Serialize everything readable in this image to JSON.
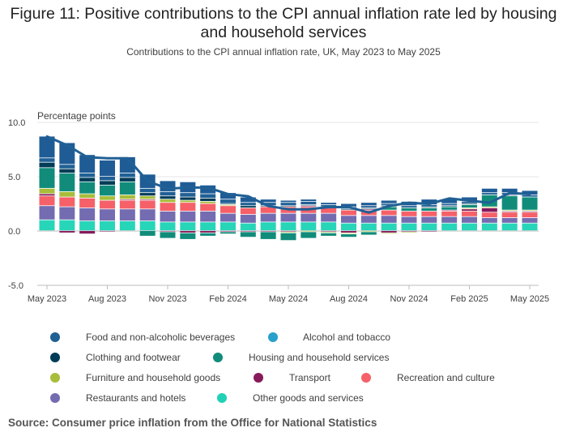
{
  "title": "Figure 11: Positive contributions to the CPI annual inflation rate led by housing and household services",
  "subtitle": "Contributions to the CPI annual inflation rate, UK, May 2023 to May 2025",
  "source": "Source: Consumer price inflation from the Office for National Statistics",
  "chart_data": {
    "type": "bar",
    "stacked": true,
    "ylabel": "Percentage points",
    "ylim": [
      -5,
      10
    ],
    "yticks": [
      "10.0",
      "5.0",
      "0.0",
      "-5.0"
    ],
    "categories": [
      "May 2023",
      "Jun 2023",
      "Jul 2023",
      "Aug 2023",
      "Sep 2023",
      "Oct 2023",
      "Nov 2023",
      "Dec 2023",
      "Jan 2024",
      "Feb 2024",
      "Mar 2024",
      "Apr 2024",
      "May 2024",
      "Jun 2024",
      "Jul 2024",
      "Aug 2024",
      "Sep 2024",
      "Oct 2024",
      "Nov 2024",
      "Dec 2024",
      "Jan 2025",
      "Feb 2025",
      "Mar 2025",
      "Apr 2025",
      "May 2025"
    ],
    "xtick_labels": [
      "May 2023",
      "Aug 2023",
      "Nov 2023",
      "Feb 2024",
      "May 2024",
      "Aug 2024",
      "Nov 2024",
      "Feb 2025",
      "May 2025"
    ],
    "xtick_indices": [
      0,
      3,
      6,
      9,
      12,
      15,
      18,
      21,
      24
    ],
    "grid": false,
    "legend_position": "bottom",
    "series": [
      {
        "name": "Other goods and services",
        "color": "#27D5B8",
        "values": [
          1.0,
          1.0,
          0.9,
          0.9,
          0.9,
          0.9,
          0.8,
          0.8,
          0.8,
          0.8,
          0.7,
          0.8,
          0.8,
          0.8,
          0.8,
          0.7,
          0.7,
          0.7,
          0.7,
          0.7,
          0.7,
          0.7,
          0.7,
          0.7,
          0.7
        ]
      },
      {
        "name": "Restaurants and hotels",
        "color": "#746CB1",
        "values": [
          1.3,
          1.2,
          1.2,
          1.1,
          1.1,
          1.1,
          1.0,
          1.0,
          1.0,
          0.8,
          0.8,
          0.8,
          0.8,
          0.8,
          0.8,
          0.7,
          0.7,
          0.7,
          0.6,
          0.6,
          0.6,
          0.6,
          0.5,
          0.5,
          0.5
        ]
      },
      {
        "name": "Recreation and culture",
        "color": "#F66068",
        "values": [
          0.9,
          0.9,
          0.9,
          0.8,
          0.8,
          0.8,
          0.8,
          0.8,
          0.7,
          0.7,
          0.6,
          0.6,
          0.6,
          0.6,
          0.5,
          0.5,
          0.5,
          0.5,
          0.5,
          0.5,
          0.5,
          0.5,
          0.5,
          0.5,
          0.5
        ]
      },
      {
        "name": "Transport",
        "color": "#871A5B",
        "values": [
          0.2,
          -0.2,
          -0.3,
          -0.1,
          0.1,
          0.1,
          -0.1,
          -0.2,
          -0.2,
          -0.1,
          -0.1,
          -0.1,
          -0.1,
          0.1,
          -0.1,
          -0.2,
          0.1,
          -0.2,
          -0.1,
          -0.1,
          0.1,
          0.2,
          0.4,
          0.1,
          0.1
        ]
      },
      {
        "name": "Furniture and household goods",
        "color": "#A8BD3A",
        "values": [
          0.5,
          0.5,
          0.4,
          0.4,
          0.4,
          0.3,
          0.3,
          0.2,
          0.2,
          0.1,
          0.0,
          0.0,
          -0.1,
          -0.1,
          -0.1,
          -0.1,
          -0.1,
          -0.1,
          -0.1,
          0.0,
          0.0,
          0.1,
          0.1,
          0.1,
          0.1
        ]
      },
      {
        "name": "Housing and household services",
        "color": "#118C7B",
        "values": [
          1.9,
          1.7,
          1.1,
          1.0,
          1.2,
          -0.5,
          -0.6,
          -0.6,
          -0.3,
          -0.2,
          -0.5,
          -0.7,
          -0.7,
          -0.6,
          -0.3,
          -0.3,
          -0.3,
          0.3,
          0.3,
          0.3,
          0.3,
          0.3,
          1.1,
          1.3,
          1.2
        ]
      },
      {
        "name": "Clothing and footwear",
        "color": "#003C57",
        "values": [
          0.5,
          0.4,
          0.4,
          0.4,
          0.4,
          0.3,
          0.3,
          0.3,
          0.3,
          0.1,
          0.2,
          0.1,
          0.1,
          0.1,
          0.1,
          0.1,
          0.1,
          0.1,
          0.0,
          0.1,
          0.1,
          0.1,
          0.0,
          0.1,
          0.0
        ]
      },
      {
        "name": "Alcohol and tobacco",
        "color": "#206095",
        "values": [
          0.4,
          0.4,
          0.4,
          0.4,
          0.4,
          0.4,
          0.4,
          0.4,
          0.4,
          0.4,
          0.3,
          0.3,
          0.3,
          0.3,
          0.2,
          0.2,
          0.2,
          0.2,
          0.2,
          0.2,
          0.2,
          0.2,
          0.2,
          0.2,
          0.2
        ]
      },
      {
        "name": "Food and non-alcoholic beverages",
        "color": "#1F5C96",
        "values": [
          2.0,
          2.0,
          1.7,
          1.5,
          1.5,
          1.3,
          1.0,
          1.0,
          0.8,
          0.6,
          0.5,
          0.3,
          0.2,
          0.2,
          0.2,
          0.3,
          0.3,
          0.3,
          0.4,
          0.5,
          0.4,
          0.4,
          0.4,
          0.4,
          0.4
        ]
      }
    ],
    "line": {
      "name": "CPI annual rate",
      "color": "#206095",
      "values": [
        8.7,
        7.9,
        6.8,
        6.7,
        6.7,
        4.6,
        3.9,
        4.0,
        4.0,
        3.4,
        3.2,
        2.3,
        2.0,
        2.0,
        2.2,
        2.2,
        1.7,
        2.3,
        2.6,
        2.5,
        3.0,
        2.8,
        2.6,
        3.5,
        3.4
      ]
    }
  },
  "legend": [
    {
      "label": "Food and non-alcoholic beverages",
      "color": "#206095"
    },
    {
      "label": "Alcohol and tobacco",
      "color": "#27A0CC"
    },
    {
      "label": "Clothing and footwear",
      "color": "#003C57"
    },
    {
      "label": "Housing and household services",
      "color": "#118C7B"
    },
    {
      "label": "Furniture and household goods",
      "color": "#A8BD3A"
    },
    {
      "label": "Transport",
      "color": "#871A5B"
    },
    {
      "label": "Recreation and culture",
      "color": "#F66068"
    },
    {
      "label": "Restaurants and hotels",
      "color": "#746CB1"
    },
    {
      "label": "Other goods and services",
      "color": "#22D0B6"
    }
  ]
}
